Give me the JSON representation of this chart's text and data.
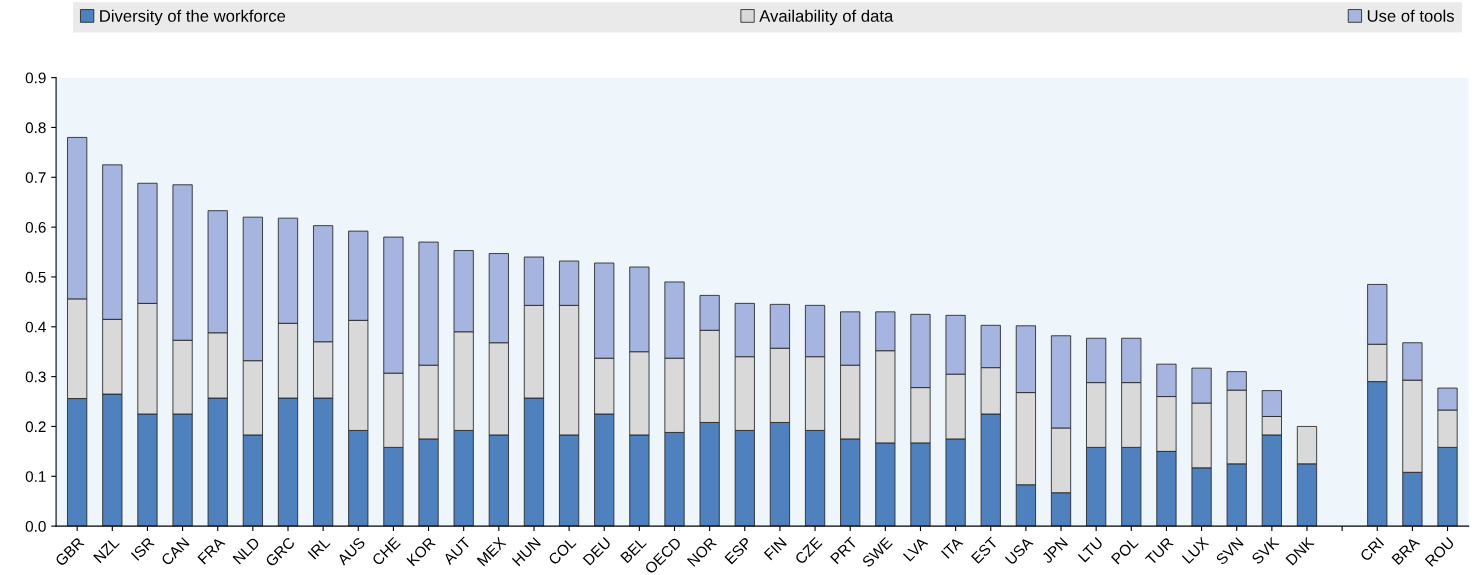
{
  "chart_data": {
    "type": "bar",
    "stacked": true,
    "legend": "top",
    "grid": false,
    "categories": [
      "GBR",
      "NZL",
      "ISR",
      "CAN",
      "FRA",
      "NLD",
      "GRC",
      "IRL",
      "AUS",
      "CHE",
      "KOR",
      "AUT",
      "MEX",
      "HUN",
      "COL",
      "DEU",
      "BEL",
      "OECD",
      "NOR",
      "ESP",
      "FIN",
      "CZE",
      "PRT",
      "SWE",
      "LVA",
      "ITA",
      "EST",
      "USA",
      "JPN",
      "LTU",
      "POL",
      "TUR",
      "LUX",
      "SVN",
      "SVK",
      "DNK",
      null,
      "CRI",
      "BRA",
      "ROU"
    ],
    "series": [
      {
        "name": "Diversity of the workforce",
        "color": "#4e81bd",
        "values": [
          0.256,
          0.265,
          0.225,
          0.225,
          0.257,
          0.183,
          0.257,
          0.257,
          0.192,
          0.158,
          0.175,
          0.192,
          0.183,
          0.257,
          0.183,
          0.225,
          0.183,
          0.188,
          0.208,
          0.192,
          0.208,
          0.192,
          0.175,
          0.167,
          0.167,
          0.175,
          0.225,
          0.083,
          0.067,
          0.158,
          0.158,
          0.15,
          0.117,
          0.125,
          0.183,
          0.125,
          null,
          0.29,
          0.108,
          0.158
        ]
      },
      {
        "name": "Availability of data",
        "color": "#d9d9d9",
        "values": [
          0.2,
          0.15,
          0.222,
          0.148,
          0.131,
          0.149,
          0.15,
          0.113,
          0.221,
          0.149,
          0.148,
          0.198,
          0.185,
          0.186,
          0.26,
          0.112,
          0.167,
          0.149,
          0.185,
          0.148,
          0.149,
          0.148,
          0.148,
          0.185,
          0.111,
          0.13,
          0.093,
          0.185,
          0.13,
          0.13,
          0.13,
          0.11,
          0.13,
          0.148,
          0.037,
          0.075,
          null,
          0.075,
          0.185,
          0.075
        ]
      },
      {
        "name": "Use of tools",
        "color": "#a6b4e0",
        "values": [
          0.324,
          0.31,
          0.241,
          0.312,
          0.245,
          0.288,
          0.211,
          0.233,
          0.179,
          0.273,
          0.247,
          0.163,
          0.179,
          0.097,
          0.089,
          0.191,
          0.17,
          0.153,
          0.07,
          0.107,
          0.088,
          0.103,
          0.107,
          0.078,
          0.147,
          0.118,
          0.085,
          0.134,
          0.185,
          0.089,
          0.089,
          0.065,
          0.07,
          0.037,
          0.052,
          null,
          null,
          0.12,
          0.075,
          0.044
        ]
      }
    ],
    "ylim": [
      0,
      0.9
    ],
    "yticks": [
      {
        "value": 0,
        "label": "0.0"
      },
      0.1,
      0.2,
      0.3,
      0.4,
      0.5,
      0.6,
      0.7,
      0.8,
      0.9
    ]
  }
}
